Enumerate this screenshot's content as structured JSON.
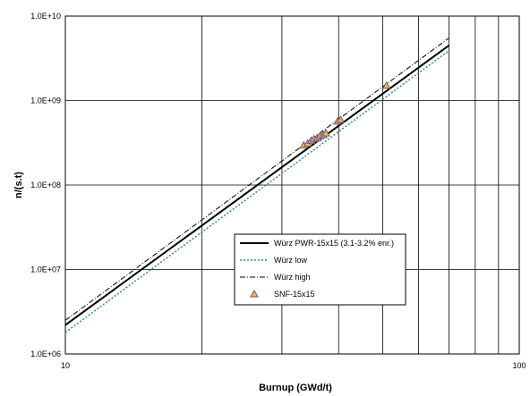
{
  "chart_data": {
    "type": "line",
    "xlabel": "Burnup (GWd/t)",
    "ylabel": "n/(s.t)",
    "x_scale": "log",
    "y_scale": "log",
    "xlim": [
      10,
      100
    ],
    "ylim": [
      1000000,
      10000000000
    ],
    "x_tick_labels": [
      "10",
      "100"
    ],
    "y_tick_labels": [
      "1.0E+06",
      "1.0E+07",
      "1.0E+08",
      "1.0E+09",
      "1.0E+10"
    ],
    "grid": true,
    "legend_position": "bottom-right",
    "series": [
      {
        "name": "Würz PWR-15x15 (3.1-3.2% enr.)",
        "style": "solid",
        "color": "#000000",
        "x": [
          10,
          70
        ],
        "y": [
          2200000,
          4500000000
        ]
      },
      {
        "name": "Würz low",
        "style": "dotted",
        "color": "#2e8b8b",
        "x": [
          10,
          70
        ],
        "y": [
          1800000,
          3900000000
        ]
      },
      {
        "name": "Würz high",
        "style": "dashdot",
        "color": "#000000",
        "x": [
          10,
          70
        ],
        "y": [
          2500000,
          5500000000
        ]
      },
      {
        "name": "SNF-15x15",
        "style": "marker",
        "color": "#f0c020",
        "x": [
          33.5,
          34.2,
          34.8,
          35.3,
          35.9,
          36.4,
          37.0,
          37.5,
          39.8,
          40.4,
          51.0
        ],
        "y": [
          295000000,
          310000000,
          335000000,
          350000000,
          360000000,
          380000000,
          390000000,
          410000000,
          565000000,
          590000000,
          1500000000
        ]
      }
    ]
  }
}
